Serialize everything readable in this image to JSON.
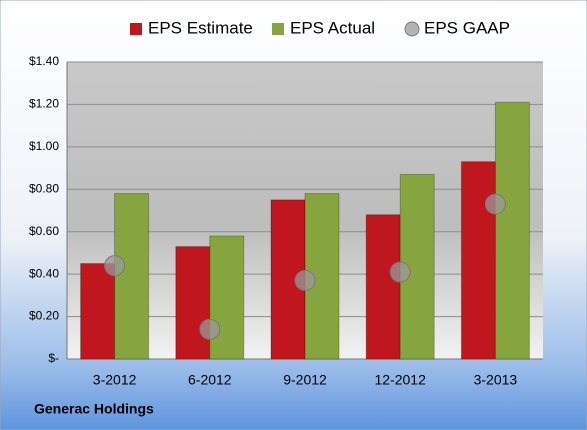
{
  "chart_data": {
    "type": "bar",
    "categories": [
      "3-2012",
      "6-2012",
      "9-2012",
      "12-2012",
      "3-2013"
    ],
    "series": [
      {
        "name": "EPS Estimate",
        "color": "#c0161d",
        "values": [
          0.45,
          0.53,
          0.75,
          0.68,
          0.93
        ]
      },
      {
        "name": "EPS Actual",
        "color": "#86a53e",
        "values": [
          0.78,
          0.58,
          0.78,
          0.87,
          1.21
        ]
      },
      {
        "name": "EPS GAAP",
        "color": "#9a9a9a",
        "type": "scatter",
        "values": [
          0.44,
          0.14,
          0.37,
          0.41,
          0.73
        ]
      }
    ],
    "ylim": [
      0,
      1.4
    ],
    "yticks": [
      {
        "value": 0,
        "label": "$-"
      },
      {
        "value": 0.2,
        "label": "$0.20"
      },
      {
        "value": 0.4,
        "label": "$0.40"
      },
      {
        "value": 0.6,
        "label": "$0.60"
      },
      {
        "value": 0.8,
        "label": "$0.80"
      },
      {
        "value": 1.0,
        "label": "$1.00"
      },
      {
        "value": 1.2,
        "label": "$1.20"
      },
      {
        "value": 1.4,
        "label": "$1.40"
      }
    ],
    "grid": true,
    "legend": "top",
    "source": "Generac Holdings"
  }
}
